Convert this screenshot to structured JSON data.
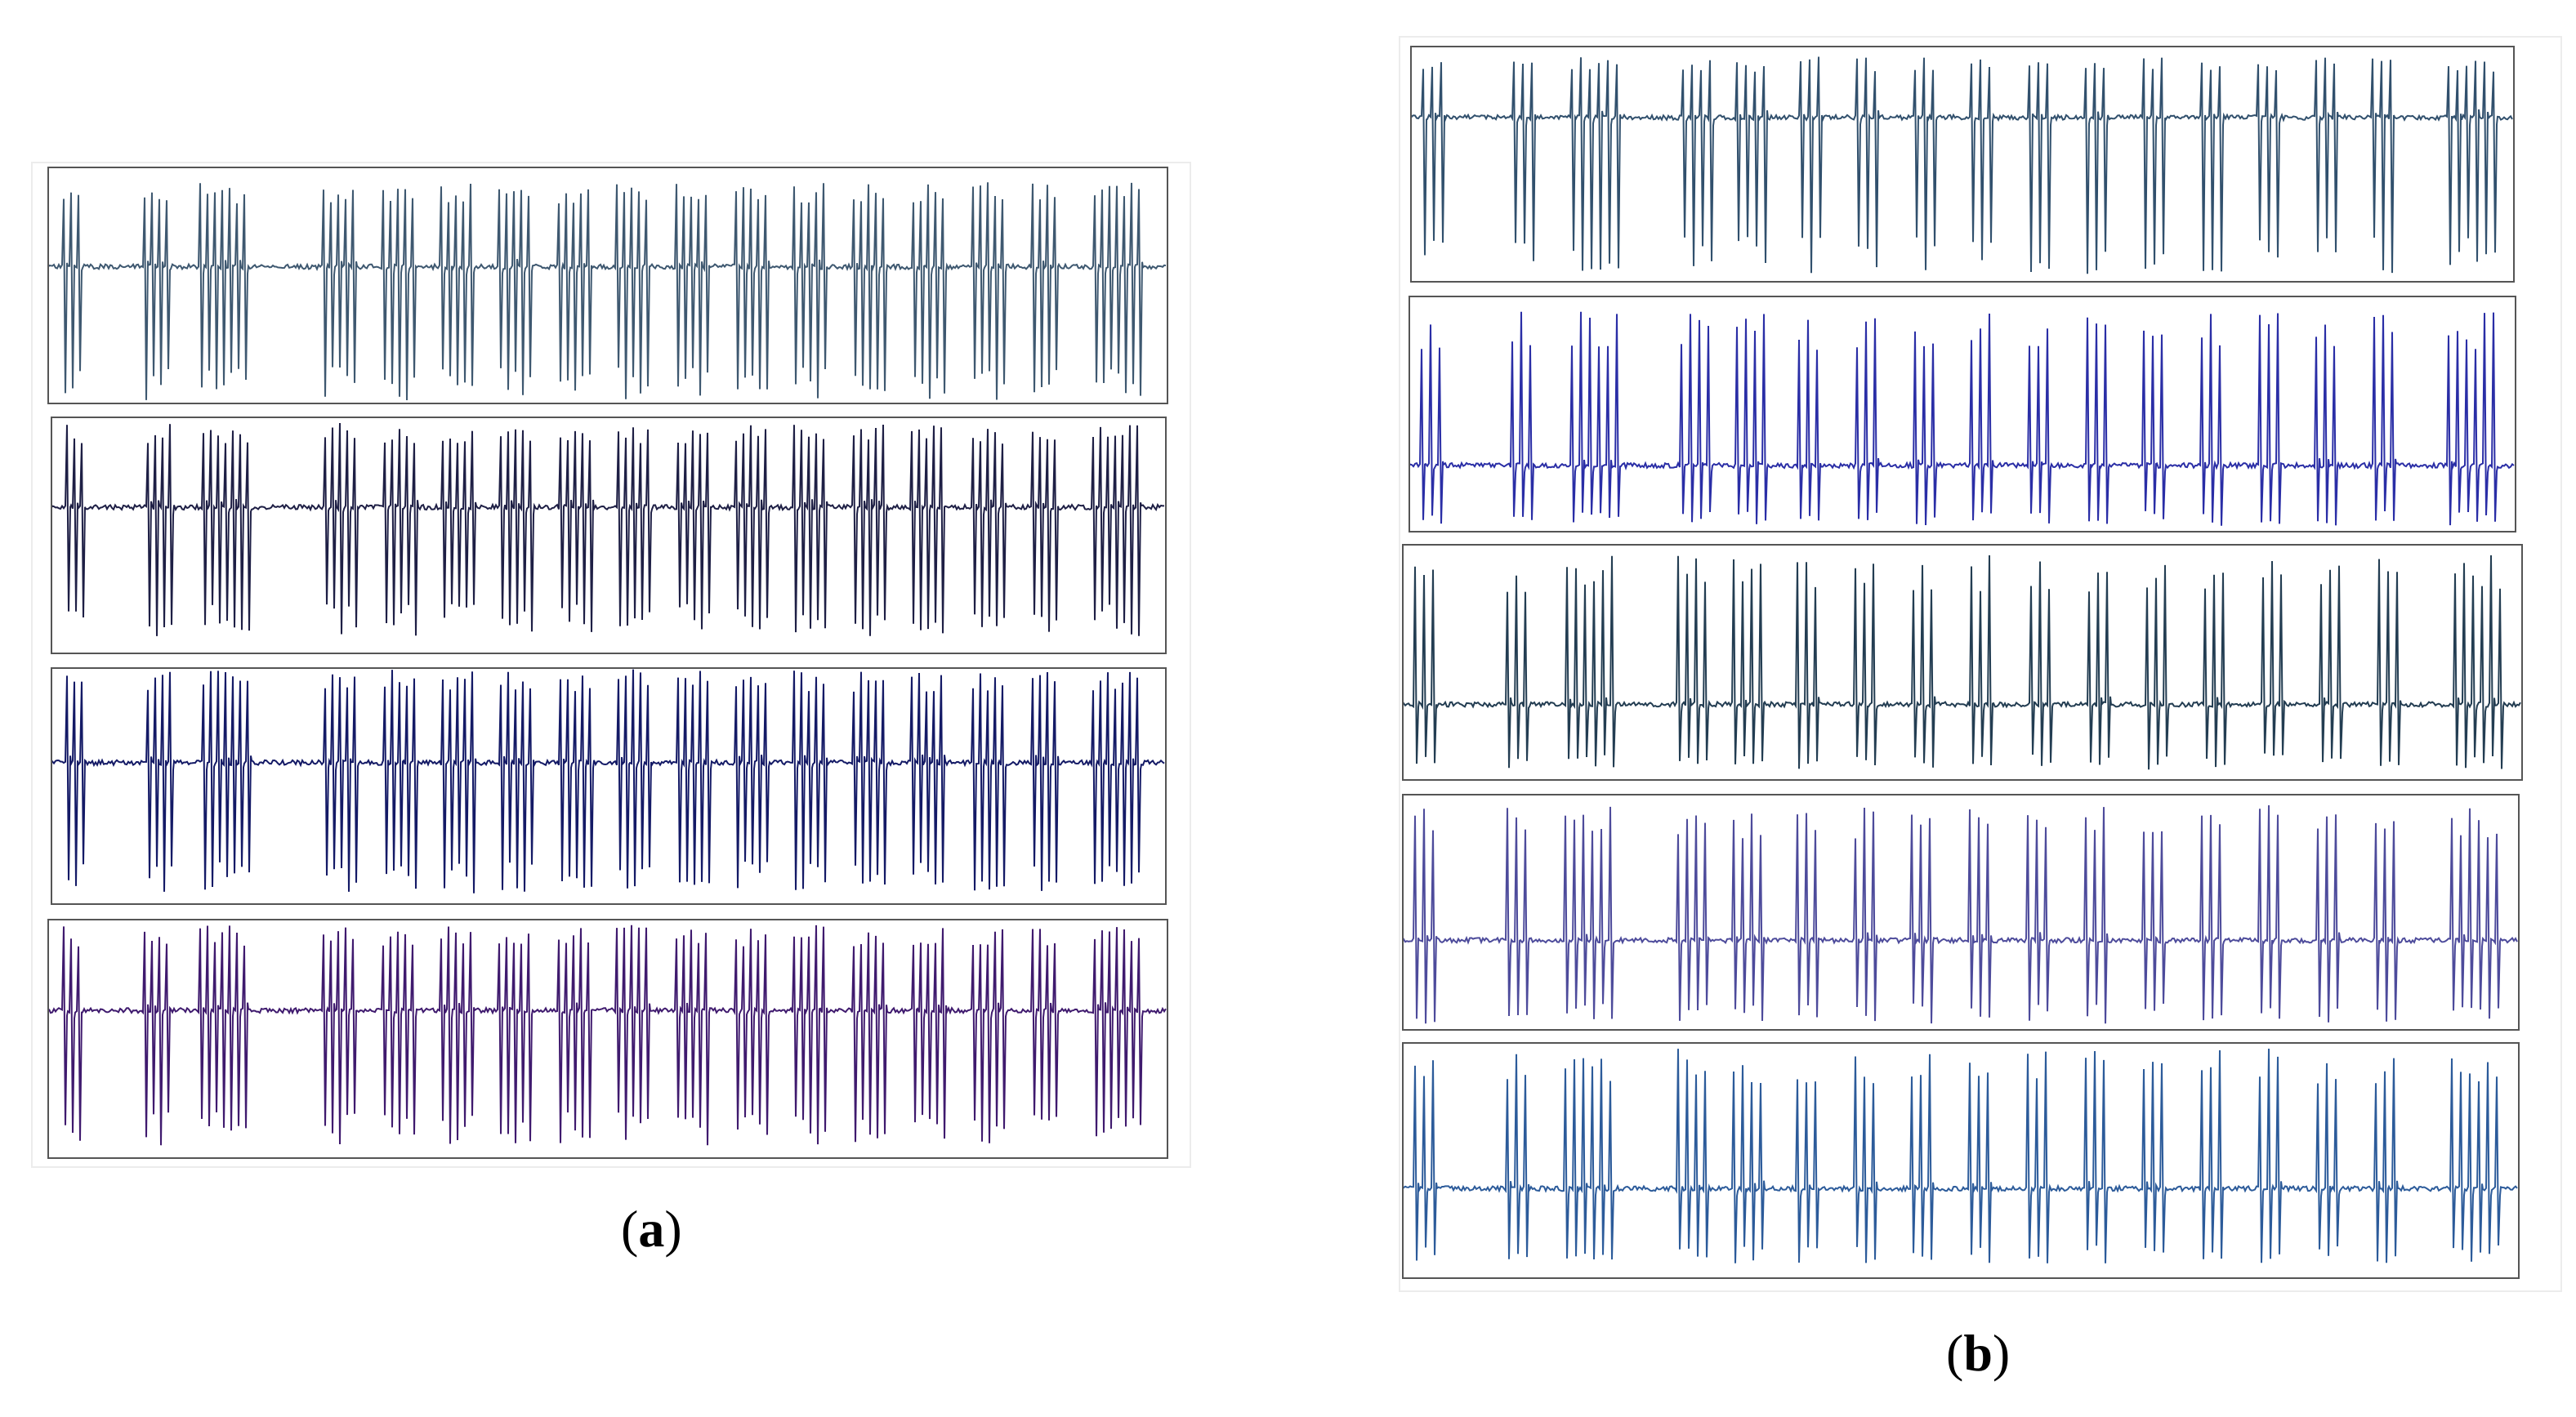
{
  "panels": [
    {
      "id": "a",
      "caption_open": "(",
      "caption_letter": "a",
      "caption_close": ")",
      "traces": [
        {
          "color": "#3e5870"
        },
        {
          "color": "#1e1f45"
        },
        {
          "color": "#141a66"
        },
        {
          "color": "#3f1a6e"
        }
      ]
    },
    {
      "id": "b",
      "caption_open": "(",
      "caption_letter": "b",
      "caption_close": ")",
      "traces": [
        {
          "color": "#31506d"
        },
        {
          "color": "#2a2ea6"
        },
        {
          "color": "#233d52"
        },
        {
          "color": "#4d4b9b"
        },
        {
          "color": "#2c5b9a"
        }
      ]
    }
  ]
}
